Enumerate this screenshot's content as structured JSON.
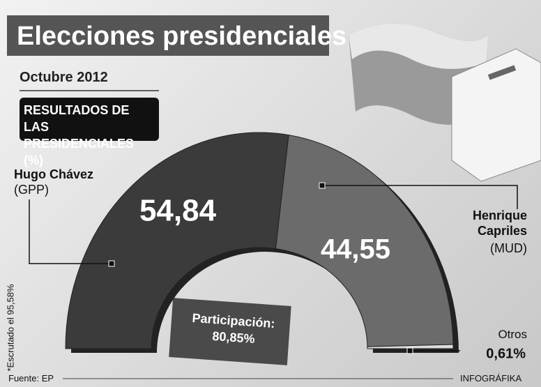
{
  "chart_data": {
    "type": "half-donut",
    "title": "Elecciones presidenciales",
    "subtitle": "Octubre 2012",
    "chart_heading": "RESULTADOS DE LAS PRESIDENCIALES (%)",
    "categories": [
      "Hugo Chávez",
      "Henrique Capriles",
      "Otros"
    ],
    "parties": [
      "(GPP)",
      "(MUD)",
      null
    ],
    "values": [
      54.84,
      44.55,
      0.61
    ],
    "value_labels": [
      "54,84",
      "44,55",
      "0,61%"
    ],
    "colors": [
      "#3b3b3b",
      "#6b6b6b",
      "#dcdcdc"
    ],
    "participation_label": "Participación:",
    "participation_value": "80,85%",
    "note": "*Escrutado el 95,58%",
    "source": "Fuente: EP",
    "credit": "INFOGRÁFIKA"
  }
}
